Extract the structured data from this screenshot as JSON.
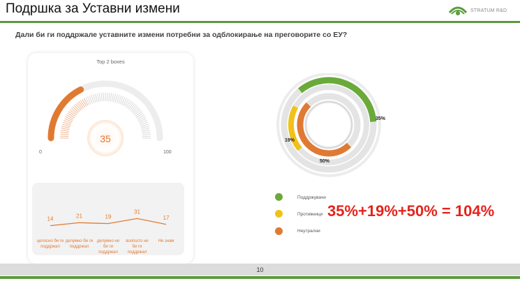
{
  "slide": {
    "title": "Подршка за Уставни измени",
    "question": "Дали би ги поддржале уставните измени потребни за одблокирање на преговорите со ЕУ?",
    "brand": "STRATUM R&D",
    "page_number": "10",
    "annotation": "35%+19%+50% = 104%"
  },
  "colors": {
    "green": "#6aaa3a",
    "yellow": "#f2c118",
    "orange": "#e07a33",
    "accent_line": "#5b9b3c",
    "annotation_red": "#e5231b"
  },
  "chart_data": [
    {
      "type": "gauge",
      "title": "Top 2 boxes",
      "value": 35,
      "value_label": "35",
      "min": 0,
      "max": 100,
      "min_label": "0",
      "max_label": "100"
    },
    {
      "type": "line",
      "categories": [
        "целосно би ги поддржал",
        "делумно би ги поддржал",
        "делумно не би ги поддржал",
        "воопшто не би ги поддржал",
        "Не знам"
      ],
      "values": [
        14,
        21,
        19,
        31,
        17
      ],
      "value_labels": [
        "14",
        "21",
        "19",
        "31",
        "17"
      ]
    },
    {
      "type": "pie",
      "style": "concentric-rings",
      "series": [
        {
          "name": "Поддржувачи",
          "value": 35,
          "label": "35%",
          "color": "#6aaa3a"
        },
        {
          "name": "Противници",
          "value": 19,
          "label": "19%",
          "color": "#f2c118"
        },
        {
          "name": "Неутрални",
          "value": 50,
          "label": "50%",
          "color": "#e07a33"
        }
      ]
    }
  ]
}
